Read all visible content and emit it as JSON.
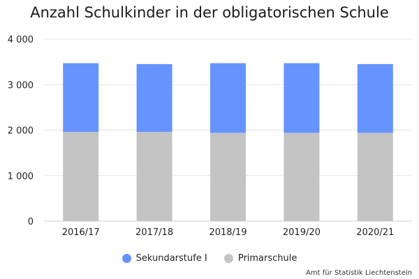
{
  "chart_data": {
    "type": "bar",
    "stacked": true,
    "title": "Anzahl Schulkinder in der obligatorischen Schule",
    "categories": [
      "2016/17",
      "2017/18",
      "2018/19",
      "2019/20",
      "2020/21"
    ],
    "series": [
      {
        "name": "Primarschule",
        "color": "#c4c4c4",
        "values": [
          1960,
          1960,
          1940,
          1940,
          1940
        ]
      },
      {
        "name": "Sekundarstufe I",
        "color": "#6694ff",
        "values": [
          1510,
          1490,
          1530,
          1530,
          1510
        ]
      }
    ],
    "ylim": [
      0,
      4000
    ],
    "yticks": [
      0,
      1000,
      2000,
      3000,
      4000
    ],
    "ytick_labels": [
      "0",
      "1 000",
      "2 000",
      "3 000",
      "4 000"
    ],
    "grid": true,
    "legend_position": "bottom"
  },
  "legend": [
    {
      "label": "Sekundarstufe I",
      "color": "#6694ff"
    },
    {
      "label": "Primarschule",
      "color": "#c4c4c4"
    }
  ],
  "source": "Amt für Statistik Liechtenstein"
}
